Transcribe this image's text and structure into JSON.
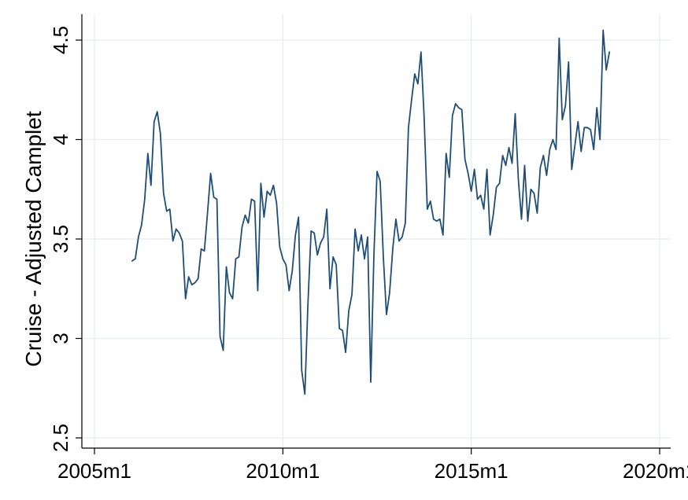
{
  "chart_data": {
    "type": "line",
    "title": "",
    "xlabel": "",
    "ylabel": "Cruise - Adjusted Camplet",
    "xlim": [
      2005,
      2020
    ],
    "ylim": [
      2.5,
      4.55
    ],
    "grid": true,
    "xticks": [
      {
        "value": 2005,
        "label": "2005m1"
      },
      {
        "value": 2010,
        "label": "2010m1"
      },
      {
        "value": 2015,
        "label": "2015m1"
      },
      {
        "value": 2020,
        "label": "2020m1"
      }
    ],
    "yticks": [
      {
        "value": 2.5,
        "label": "2.5"
      },
      {
        "value": 3,
        "label": "3"
      },
      {
        "value": 3.5,
        "label": "3.5"
      },
      {
        "value": 4,
        "label": "4"
      },
      {
        "value": 4.5,
        "label": "4.5"
      }
    ],
    "series": [
      {
        "name": "Cruise - Adjusted Camplet",
        "color": "#1f4e79",
        "start_year": 2006.0,
        "step_years": 0.08333,
        "values": [
          3.39,
          3.4,
          3.51,
          3.57,
          3.7,
          3.93,
          3.77,
          4.09,
          4.14,
          4.03,
          3.73,
          3.64,
          3.65,
          3.49,
          3.55,
          3.53,
          3.49,
          3.2,
          3.31,
          3.27,
          3.28,
          3.3,
          3.45,
          3.44,
          3.63,
          3.83,
          3.71,
          3.7,
          3.01,
          2.94,
          3.36,
          3.23,
          3.2,
          3.4,
          3.41,
          3.56,
          3.62,
          3.58,
          3.7,
          3.69,
          3.24,
          3.78,
          3.61,
          3.74,
          3.72,
          3.77,
          3.68,
          3.46,
          3.4,
          3.37,
          3.24,
          3.34,
          3.52,
          3.61,
          2.84,
          2.72,
          3.18,
          3.54,
          3.53,
          3.42,
          3.48,
          3.51,
          3.65,
          3.25,
          3.41,
          3.37,
          3.05,
          3.04,
          2.93,
          3.14,
          3.22,
          3.55,
          3.44,
          3.52,
          3.4,
          3.51,
          2.78,
          3.42,
          3.84,
          3.79,
          3.41,
          3.12,
          3.23,
          3.45,
          3.6,
          3.49,
          3.51,
          3.58,
          4.06,
          4.2,
          4.33,
          4.28,
          4.44,
          4.11,
          3.65,
          3.69,
          3.6,
          3.59,
          3.6,
          3.52,
          3.93,
          3.81,
          4.12,
          4.18,
          4.16,
          4.15,
          3.9,
          3.83,
          3.74,
          3.85,
          3.7,
          3.72,
          3.65,
          3.85,
          3.52,
          3.62,
          3.76,
          3.78,
          3.92,
          3.87,
          3.96,
          3.88,
          4.13,
          3.8,
          3.6,
          3.87,
          3.59,
          3.75,
          3.73,
          3.63,
          3.86,
          3.92,
          3.82,
          3.95,
          4.0,
          3.95,
          4.51,
          4.1,
          4.17,
          4.39,
          3.85,
          3.97,
          4.09,
          3.94,
          4.06,
          4.06,
          4.05,
          3.95,
          4.16,
          4.0,
          4.55,
          4.35,
          4.44
        ]
      }
    ]
  }
}
